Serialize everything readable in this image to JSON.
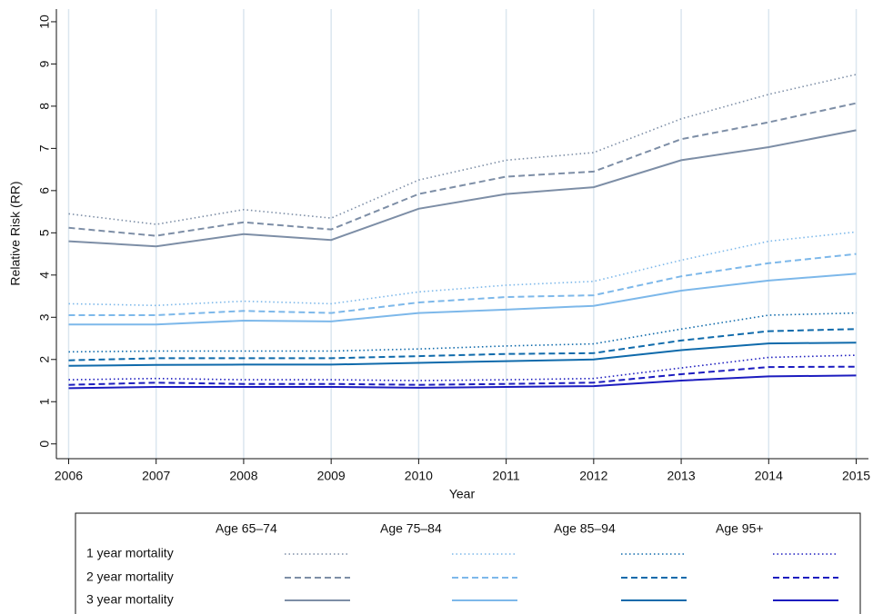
{
  "chart_data": {
    "type": "line",
    "y_label": "Relative Risk (RR)",
    "x_label": "Year",
    "x": [
      2006,
      2007,
      2008,
      2009,
      2010,
      2011,
      2012,
      2013,
      2014,
      2015
    ],
    "xlim": [
      2005.86,
      2015.14
    ],
    "xticks": [
      2006,
      2007,
      2008,
      2009,
      2010,
      2011,
      2012,
      2013,
      2014,
      2015
    ],
    "ylim": [
      -0.35,
      10.3
    ],
    "yticks": [
      0,
      1,
      2,
      3,
      4,
      5,
      6,
      7,
      8,
      9,
      10
    ],
    "grid": "x",
    "legend_position": "bottom",
    "legend_rows": [
      "1 year mortality",
      "2 year mortality",
      "3 year mortality"
    ],
    "series": [
      {
        "name": "Age 65–74",
        "color": "#7d8ea6",
        "lines": [
          {
            "style": "dotted",
            "values": [
              5.45,
              5.2,
              5.55,
              5.35,
              6.25,
              6.72,
              6.9,
              7.7,
              8.28,
              8.75
            ]
          },
          {
            "style": "dashed",
            "values": [
              5.12,
              4.93,
              5.25,
              5.08,
              5.92,
              6.33,
              6.45,
              7.22,
              7.62,
              8.07
            ]
          },
          {
            "style": "solid",
            "values": [
              4.8,
              4.68,
              4.97,
              4.83,
              5.57,
              5.92,
              6.08,
              6.72,
              7.03,
              7.43
            ]
          }
        ]
      },
      {
        "name": "Age 75–84",
        "color": "#7db8ea",
        "lines": [
          {
            "style": "dotted",
            "values": [
              3.32,
              3.28,
              3.38,
              3.32,
              3.6,
              3.76,
              3.85,
              4.35,
              4.8,
              5.02
            ]
          },
          {
            "style": "dashed",
            "values": [
              3.05,
              3.05,
              3.15,
              3.1,
              3.35,
              3.48,
              3.52,
              3.97,
              4.28,
              4.5
            ]
          },
          {
            "style": "solid",
            "values": [
              2.83,
              2.83,
              2.92,
              2.9,
              3.1,
              3.18,
              3.27,
              3.63,
              3.87,
              4.03
            ]
          }
        ]
      },
      {
        "name": "Age 85–94",
        "color": "#0f6aab",
        "lines": [
          {
            "style": "dotted",
            "values": [
              2.18,
              2.2,
              2.2,
              2.2,
              2.25,
              2.32,
              2.37,
              2.72,
              3.05,
              3.1
            ]
          },
          {
            "style": "dashed",
            "values": [
              1.98,
              2.03,
              2.03,
              2.03,
              2.08,
              2.13,
              2.15,
              2.45,
              2.67,
              2.72
            ]
          },
          {
            "style": "solid",
            "values": [
              1.85,
              1.87,
              1.88,
              1.88,
              1.92,
              1.96,
              2.0,
              2.22,
              2.38,
              2.4
            ]
          }
        ]
      },
      {
        "name": "Age 95+",
        "color": "#1c1cbf",
        "lines": [
          {
            "style": "dotted",
            "values": [
              1.52,
              1.55,
              1.52,
              1.52,
              1.5,
              1.52,
              1.55,
              1.8,
              2.05,
              2.1
            ]
          },
          {
            "style": "dashed",
            "values": [
              1.4,
              1.45,
              1.42,
              1.42,
              1.4,
              1.42,
              1.45,
              1.65,
              1.82,
              1.83
            ]
          },
          {
            "style": "solid",
            "values": [
              1.32,
              1.35,
              1.35,
              1.35,
              1.33,
              1.35,
              1.37,
              1.5,
              1.6,
              1.62
            ]
          }
        ]
      }
    ]
  }
}
